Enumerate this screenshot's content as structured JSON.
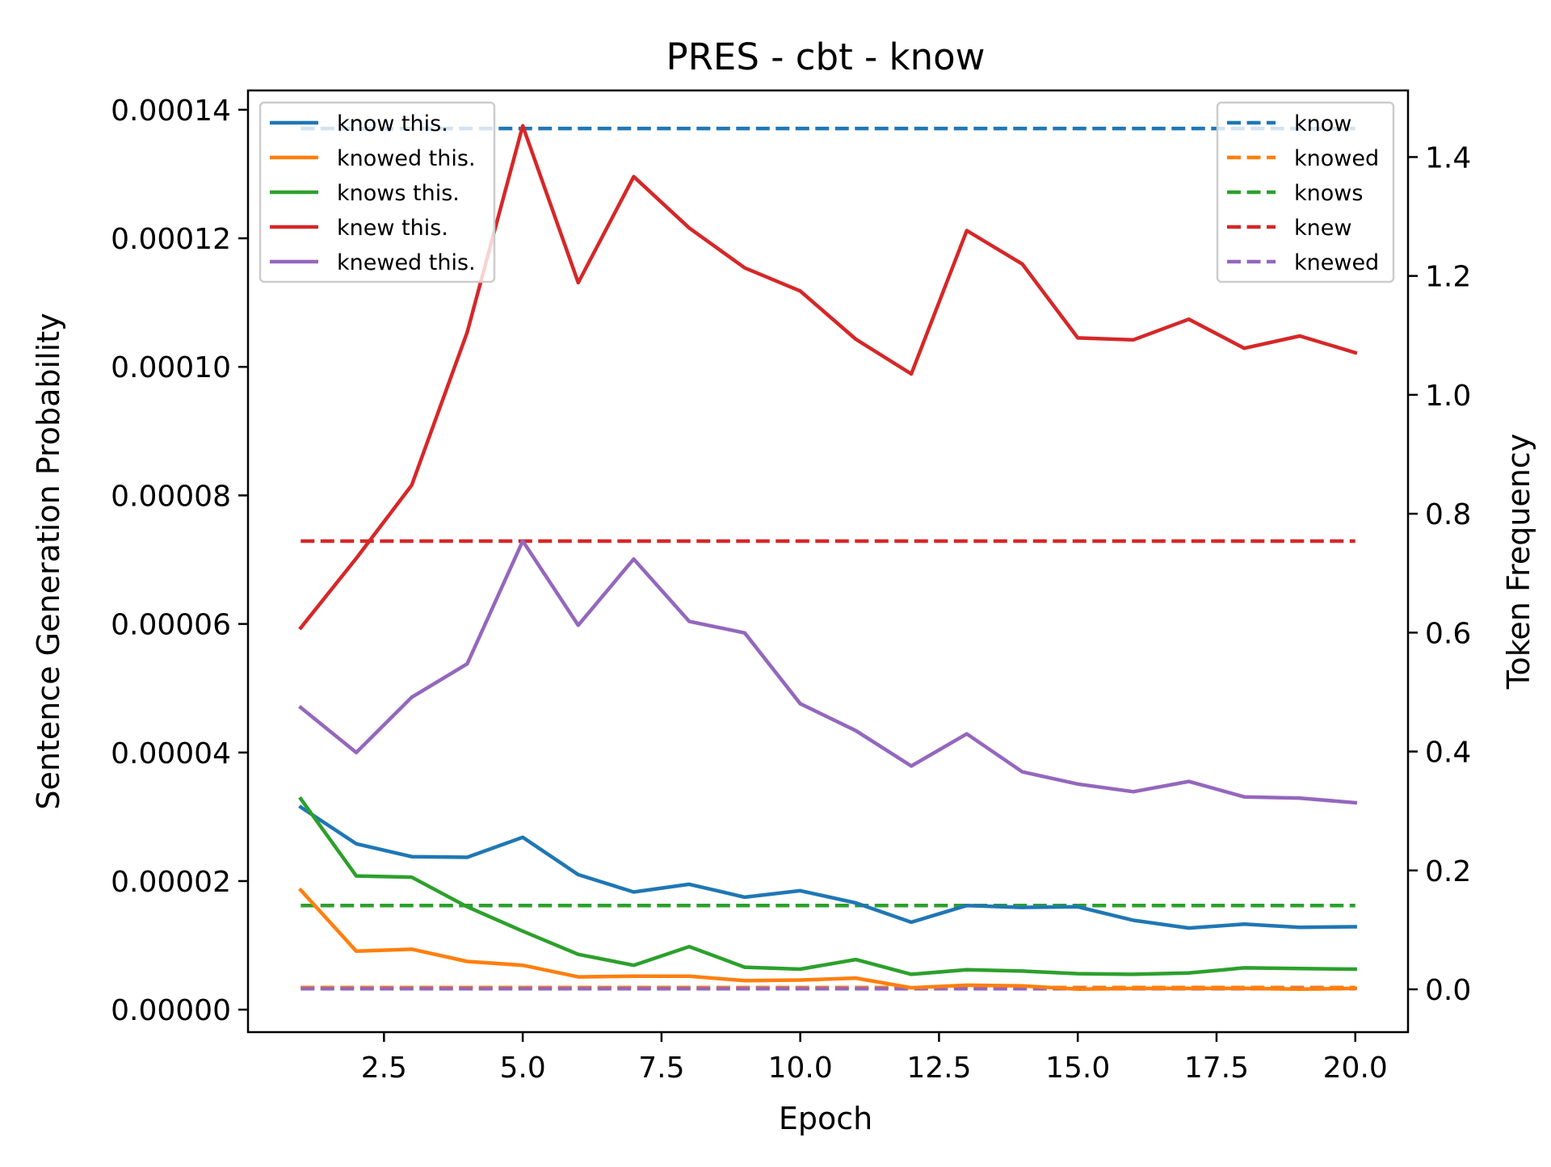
{
  "chart_data": {
    "type": "line",
    "title": "PRES - cbt - know",
    "xlabel": "Epoch",
    "ylabel": "Sentence Generation Probability",
    "y2label": "Token Frequency",
    "xlim": [
      0.05,
      20.95
    ],
    "ylim": [
      -3.5e-06,
      0.000143
    ],
    "y2lim": [
      -0.072,
      1.512
    ],
    "x_ticks": [
      2.5,
      5.0,
      7.5,
      10.0,
      12.5,
      15.0,
      17.5,
      20.0
    ],
    "x_tick_labels": [
      "2.5",
      "5.0",
      "7.5",
      "10.0",
      "12.5",
      "15.0",
      "17.5",
      "20.0"
    ],
    "y_ticks": [
      0,
      2e-05,
      4e-05,
      6e-05,
      8e-05,
      0.0001,
      0.00012,
      0.00014
    ],
    "y_tick_labels": [
      "0.00000",
      "0.00002",
      "0.00004",
      "0.00006",
      "0.00008",
      "0.00010",
      "0.00012",
      "0.00014"
    ],
    "y2_ticks": [
      0,
      0.2,
      0.4,
      0.6,
      0.8,
      1.0,
      1.2,
      1.4
    ],
    "y2_tick_labels": [
      "0.0",
      "0.2",
      "0.4",
      "0.6",
      "0.8",
      "1.0",
      "1.2",
      "1.4"
    ],
    "grid": false,
    "legend_left_position": "upper-left",
    "legend_right_position": "upper-right",
    "x": [
      1,
      2,
      3,
      4,
      5,
      6,
      7,
      8,
      9,
      10,
      11,
      12,
      13,
      14,
      15,
      16,
      17,
      18,
      19,
      20
    ],
    "series": [
      {
        "name": "know this.",
        "color": "#1f77b4",
        "values": [
          3.15e-05,
          2.58e-05,
          2.38e-05,
          2.37e-05,
          2.68e-05,
          2.1e-05,
          1.83e-05,
          1.95e-05,
          1.75e-05,
          1.85e-05,
          1.66e-05,
          1.36e-05,
          1.62e-05,
          1.59e-05,
          1.6e-05,
          1.39e-05,
          1.27e-05,
          1.33e-05,
          1.28e-05,
          1.29e-05
        ]
      },
      {
        "name": "knowed this.",
        "color": "#ff7f0e",
        "values": [
          1.86e-05,
          9.1e-06,
          9.4e-06,
          7.5e-06,
          6.9e-06,
          5.1e-06,
          5.2e-06,
          5.2e-06,
          4.5e-06,
          4.6e-06,
          4.9e-06,
          3.4e-06,
          3.8e-06,
          3.7e-06,
          3.2e-06,
          3.3e-06,
          3.3e-06,
          3.3e-06,
          3.2e-06,
          3.3e-06
        ]
      },
      {
        "name": "knows this.",
        "color": "#2ca02c",
        "values": [
          3.28e-05,
          2.08e-05,
          2.06e-05,
          1.6e-05,
          1.22e-05,
          8.6e-06,
          6.9e-06,
          9.8e-06,
          6.6e-06,
          6.3e-06,
          7.8e-06,
          5.5e-06,
          6.2e-06,
          6e-06,
          5.6e-06,
          5.5e-06,
          5.7e-06,
          6.5e-06,
          6.4e-06,
          6.3e-06
        ]
      },
      {
        "name": "knew this.",
        "color": "#d62728",
        "values": [
          5.94e-05,
          7.02e-05,
          8.16e-05,
          0.0001054,
          0.0001375,
          0.0001131,
          0.0001296,
          0.0001216,
          0.0001154,
          0.0001118,
          0.0001043,
          9.89e-05,
          0.0001212,
          0.000116,
          0.0001045,
          0.0001042,
          0.0001074,
          0.0001029,
          0.0001048,
          0.0001022
        ]
      },
      {
        "name": "knewed this.",
        "color": "#9467bd",
        "values": [
          4.7e-05,
          4e-05,
          4.86e-05,
          5.38e-05,
          7.29e-05,
          5.98e-05,
          7.01e-05,
          6.04e-05,
          5.86e-05,
          4.76e-05,
          4.34e-05,
          3.79e-05,
          4.29e-05,
          3.7e-05,
          3.51e-05,
          3.39e-05,
          3.55e-05,
          3.31e-05,
          3.29e-05,
          3.22e-05
        ]
      }
    ],
    "frequency_series": [
      {
        "name": "know",
        "color": "#1f77b4",
        "value": 1.448
      },
      {
        "name": "knowed",
        "color": "#ff7f0e",
        "value": 0.003
      },
      {
        "name": "knows",
        "color": "#2ca02c",
        "value": 0.141
      },
      {
        "name": "knew",
        "color": "#d62728",
        "value": 0.754
      },
      {
        "name": "knewed",
        "color": "#9467bd",
        "value": 0.001
      }
    ]
  }
}
